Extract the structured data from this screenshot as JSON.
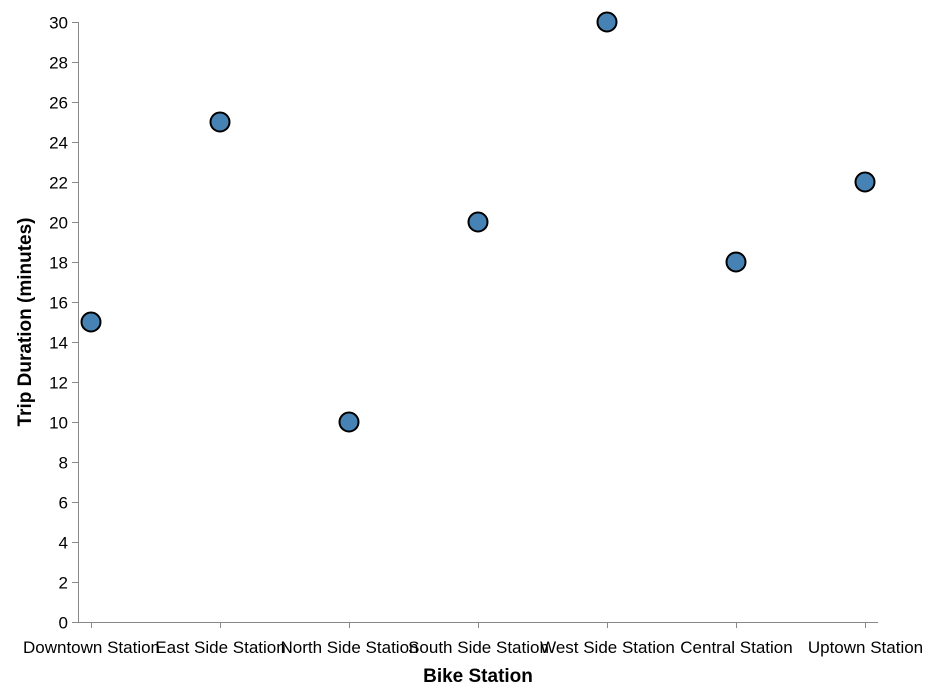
{
  "chart_data": {
    "type": "scatter",
    "categories": [
      "Downtown Station",
      "East Side Station",
      "North Side Station",
      "South Side Station",
      "West Side Station",
      "Central Station",
      "Uptown Station"
    ],
    "values": [
      15,
      25,
      10,
      20,
      30,
      18,
      22
    ],
    "xlabel": "Bike Station",
    "ylabel": "Trip Duration (minutes)",
    "ylim": [
      0,
      30
    ],
    "yticks": [
      0,
      2,
      4,
      6,
      8,
      10,
      12,
      14,
      16,
      18,
      20,
      22,
      24,
      26,
      28,
      30
    ],
    "grid": false,
    "legend": "none",
    "point_color": "#4682b4"
  }
}
